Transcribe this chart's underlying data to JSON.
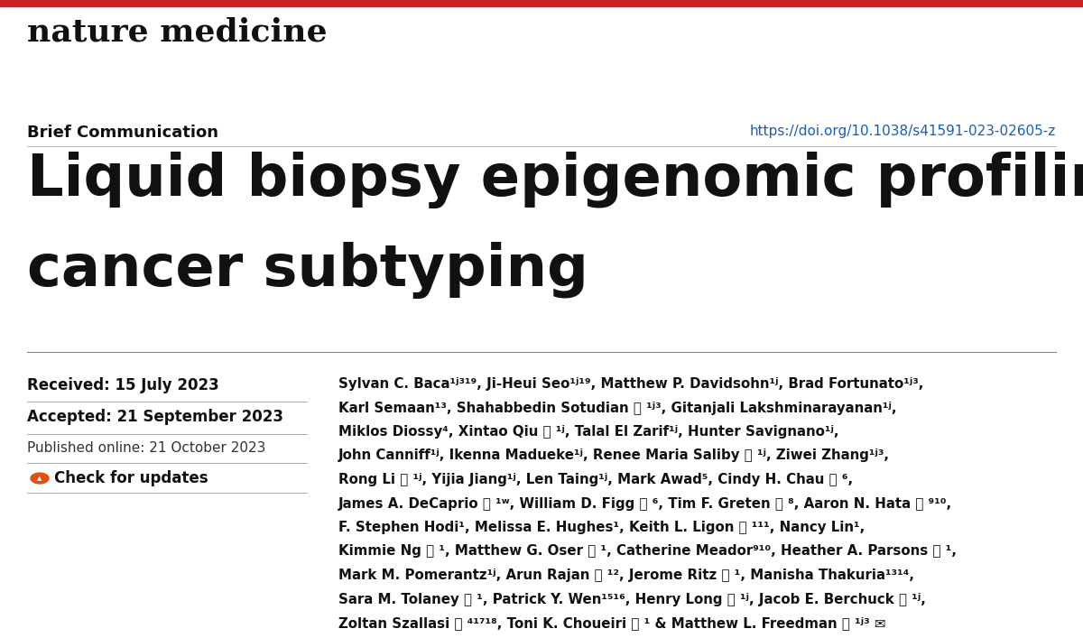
{
  "bg_color": "#ffffff",
  "red_bar_color": "#cc2222",
  "journal_name": "nature medicine",
  "brief_comm_label": "Brief Communication",
  "doi_text": "https://doi.org/10.1038/s41591-023-02605-z",
  "doi_color": "#1a5eb8",
  "title_line1": "Liquid biopsy epigenomic profiling for",
  "title_line2": "cancer subtyping",
  "received": "Received: 15 July 2023",
  "accepted": "Accepted: 21 September 2023",
  "published": "Published online: 21 October 2023",
  "check_updates": "Check for updates",
  "authors_lines": [
    "Sylvan C. Baca¹ʲ³¹⁹, Ji-Heui Seo¹ʲ¹⁹, Matthew P. Davidsohn¹ʲ, Brad Fortunato¹ʲ³,",
    "Karl Semaan¹³, Shahabbedin Sotudian Ⓢ ¹ʲ³, Gitanjali Lakshminarayanan¹ʲ,",
    "Miklos Diossy⁴, Xintao Qiu Ⓢ ¹ʲ, Talal El Zarif¹ʲ, Hunter Savignano¹ʲ,",
    "John Canniff¹ʲ, Ikenna Madueke¹ʲ, Renee Maria Saliby Ⓢ ¹ʲ, Ziwei Zhang¹ʲ³,",
    "Rong Li Ⓢ ¹ʲ, Yijia Jiang¹ʲ, Len Taing¹ʲ, Mark Awad⁵, Cindy H. Chau Ⓢ ⁶,",
    "James A. DeCaprio Ⓢ ¹ʷ, William D. Figg Ⓢ ⁶, Tim F. Greten Ⓢ ⁸, Aaron N. Hata Ⓢ ⁹¹⁰,",
    "F. Stephen Hodi¹, Melissa E. Hughes¹, Keith L. Ligon Ⓢ ¹¹¹, Nancy Lin¹,",
    "Kimmie Ng Ⓢ ¹, Matthew G. Oser Ⓢ ¹, Catherine Meador⁹¹⁰, Heather A. Parsons Ⓢ ¹,",
    "Mark M. Pomerantz¹ʲ, Arun Rajan Ⓢ ¹², Jerome Ritz Ⓢ ¹, Manisha Thakuria¹³¹⁴,",
    "Sara M. Tolaney Ⓢ ¹, Patrick Y. Wen¹⁵¹⁶, Henry Long Ⓢ ¹ʲ, Jacob E. Berchuck Ⓢ ¹ʲ,",
    "Zoltan Szallasi Ⓢ ⁴¹⁷¹⁸, Toni K. Choueiri Ⓢ ¹ & Matthew L. Freedman Ⓢ ¹ʲ³ ✉"
  ],
  "fig_width": 12.0,
  "fig_height": 7.07,
  "dpi": 100
}
